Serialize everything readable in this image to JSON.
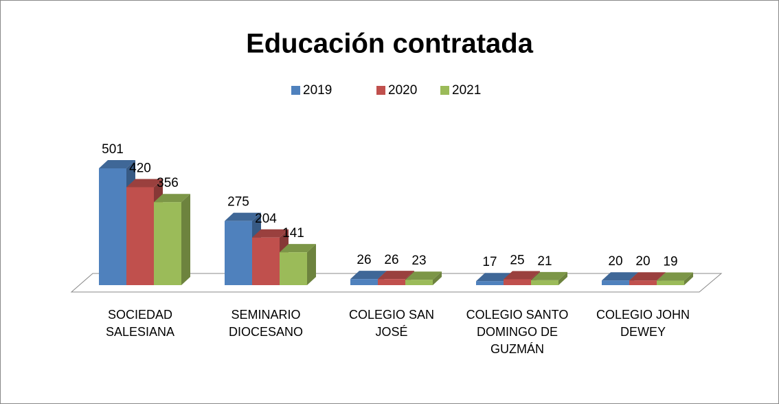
{
  "chart_data": {
    "type": "bar3d",
    "title": "Educación contratada",
    "categories": [
      "SOCIEDAD SALESIANA",
      "SEMINARIO DIOCESANO",
      "COLEGIO SAN JOSÉ",
      "COLEGIO SANTO DOMINGO DE GUZMÁN",
      "COLEGIO JOHN DEWEY"
    ],
    "series": [
      {
        "name": "2019",
        "color": "#4f81bd",
        "values": [
          501,
          275,
          26,
          17,
          20
        ]
      },
      {
        "name": "2020",
        "color": "#c0504d",
        "values": [
          420,
          204,
          26,
          25,
          20
        ]
      },
      {
        "name": "2021",
        "color": "#9bbb59",
        "values": [
          356,
          141,
          23,
          21,
          19
        ]
      }
    ],
    "legend": "top"
  }
}
